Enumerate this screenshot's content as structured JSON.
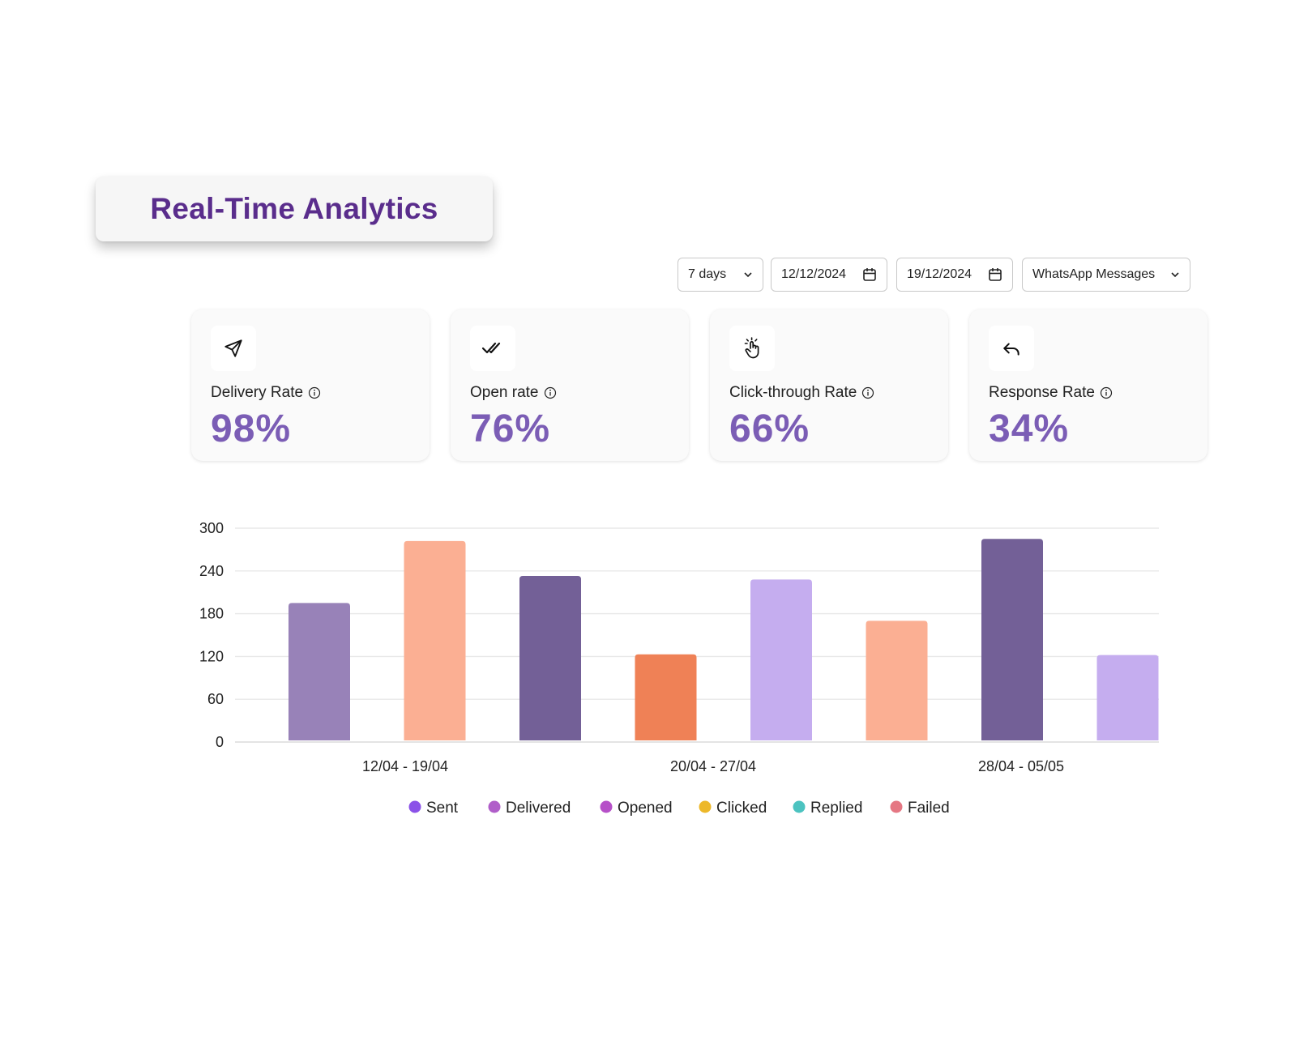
{
  "header": {
    "title": "Real-Time Analytics"
  },
  "filters": {
    "range": "7 days",
    "start_date": "12/12/2024",
    "end_date": "19/12/2024",
    "channel": "WhatsApp Messages"
  },
  "metrics": [
    {
      "label": "Delivery Rate",
      "value": "98%",
      "icon": "send-icon"
    },
    {
      "label": "Open rate",
      "value": "76%",
      "icon": "double-check-icon"
    },
    {
      "label": "Click-through Rate",
      "value": "66%",
      "icon": "tap-hand-icon"
    },
    {
      "label": "Response Rate",
      "value": "34%",
      "icon": "reply-icon"
    }
  ],
  "colors": {
    "title": "#5a2d8c",
    "metric_value": "#7b5db5"
  },
  "chart_data": {
    "type": "bar",
    "categories": [
      "12/04 - 19/04",
      "20/04 - 27/04",
      "28/04 - 05/05"
    ],
    "yticks": [
      "300",
      "240",
      "180",
      "120",
      "60",
      "0"
    ],
    "ylim": [
      0,
      300
    ],
    "grid": true,
    "legend_position": "bottom",
    "bars": [
      {
        "value": 195,
        "color": "#9882b8"
      },
      {
        "value": 282,
        "color": "#fbaf93"
      },
      {
        "value": 233,
        "color": "#736097"
      },
      {
        "value": 123,
        "color": "#ef8156"
      },
      {
        "value": 228,
        "color": "#c5adef"
      },
      {
        "value": 170,
        "color": "#fbaf93"
      },
      {
        "value": 285,
        "color": "#736097"
      },
      {
        "value": 122,
        "color": "#c5adef"
      }
    ],
    "legend": [
      {
        "name": "Sent",
        "color": "#8b52e8"
      },
      {
        "name": "Delivered",
        "color": "#b05ec9"
      },
      {
        "name": "Opened",
        "color": "#b650c8"
      },
      {
        "name": "Clicked",
        "color": "#edb829"
      },
      {
        "name": "Replied",
        "color": "#4cc3c0"
      },
      {
        "name": "Failed",
        "color": "#e57783"
      }
    ]
  }
}
